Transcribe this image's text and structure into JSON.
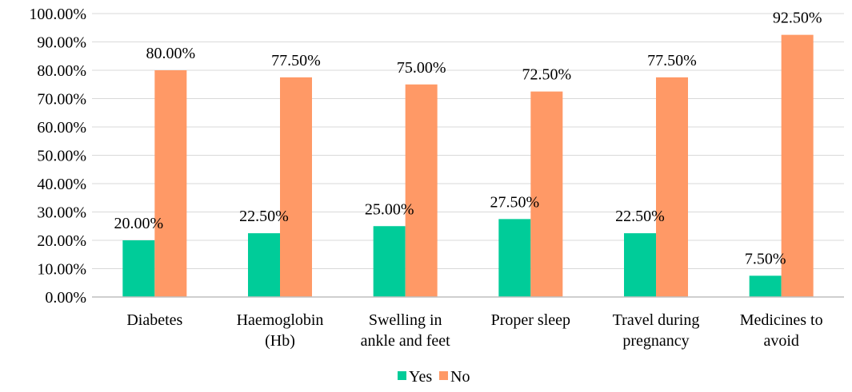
{
  "chart_data": {
    "type": "bar",
    "categories": [
      [
        "Diabetes"
      ],
      [
        "Haemoglobin",
        "(Hb)"
      ],
      [
        "Swelling in",
        "ankle and feet"
      ],
      [
        "Proper sleep"
      ],
      [
        "Travel during",
        "pregnancy"
      ],
      [
        "Medicines to",
        "avoid"
      ]
    ],
    "series": [
      {
        "name": "Yes",
        "color": "#00CC99",
        "values": [
          20.0,
          22.5,
          25.0,
          27.5,
          22.5,
          7.5
        ],
        "labels": [
          "20.00%",
          "22.50%",
          "25.00%",
          "27.50%",
          "22.50%",
          "7.50%"
        ]
      },
      {
        "name": "No",
        "color": "#FF9966",
        "values": [
          80.0,
          77.5,
          75.0,
          72.5,
          77.5,
          92.5
        ],
        "labels": [
          "80.00%",
          "77.50%",
          "75.00%",
          "72.50%",
          "77.50%",
          "92.50%"
        ]
      }
    ],
    "y_ticks": [
      "0.00%",
      "10.00%",
      "20.00%",
      "30.00%",
      "40.00%",
      "50.00%",
      "60.00%",
      "70.00%",
      "80.00%",
      "90.00%",
      "100.00%"
    ],
    "ylim": [
      0,
      100
    ],
    "grid": true,
    "gridline_color": "#D9D9D9",
    "legend_position": "bottom"
  }
}
